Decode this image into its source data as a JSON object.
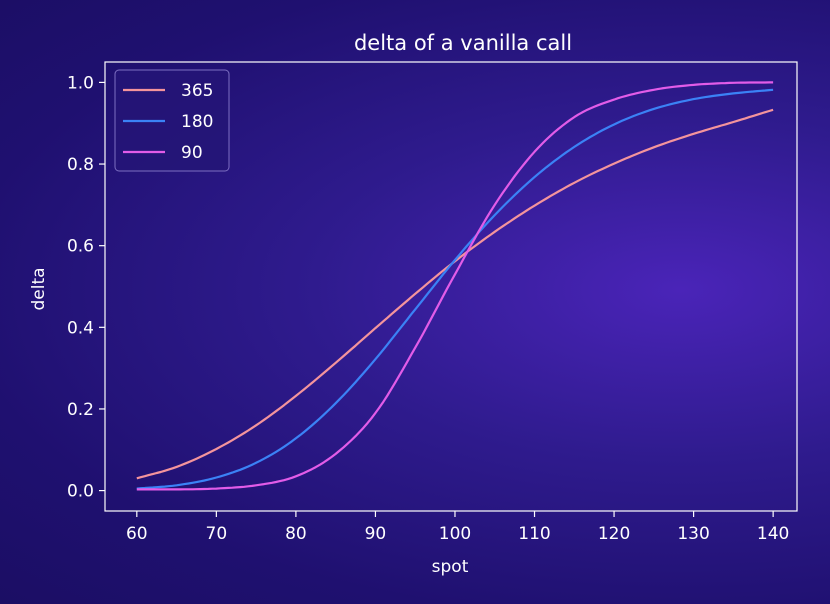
{
  "chart_data": {
    "type": "line",
    "title": "delta of a vanilla call",
    "xlabel": "spot",
    "ylabel": "delta",
    "xlim": [
      56,
      143
    ],
    "ylim": [
      -0.05,
      1.05
    ],
    "xticks": [
      60,
      70,
      80,
      90,
      100,
      110,
      120,
      130,
      140
    ],
    "yticks": [
      0.0,
      0.2,
      0.4,
      0.6,
      0.8,
      1.0
    ],
    "xtick_labels": [
      "60",
      "70",
      "80",
      "90",
      "100",
      "110",
      "120",
      "130",
      "140"
    ],
    "ytick_labels": [
      "0.0",
      "0.2",
      "0.4",
      "0.6",
      "0.8",
      "1.0"
    ],
    "grid": false,
    "legend_position": "top-left",
    "x": [
      60,
      65,
      70,
      75,
      80,
      85,
      90,
      95,
      100,
      105,
      110,
      115,
      120,
      125,
      130,
      135,
      140
    ],
    "series": [
      {
        "name": "365",
        "color": "#f4949c",
        "values": [
          0.03,
          0.058,
          0.102,
          0.16,
          0.232,
          0.313,
          0.398,
          0.482,
          0.562,
          0.634,
          0.698,
          0.754,
          0.801,
          0.841,
          0.874,
          0.903,
          0.933
        ]
      },
      {
        "name": "180",
        "color": "#3b82f6",
        "values": [
          0.005,
          0.013,
          0.032,
          0.068,
          0.128,
          0.214,
          0.322,
          0.444,
          0.565,
          0.675,
          0.768,
          0.842,
          0.897,
          0.935,
          0.959,
          0.973,
          0.982
        ]
      },
      {
        "name": "90",
        "color": "#e25ce8",
        "values": [
          0.003,
          0.003,
          0.005,
          0.013,
          0.035,
          0.09,
          0.19,
          0.35,
          0.53,
          0.7,
          0.83,
          0.915,
          0.958,
          0.982,
          0.994,
          0.999,
          1.0
        ]
      }
    ]
  }
}
